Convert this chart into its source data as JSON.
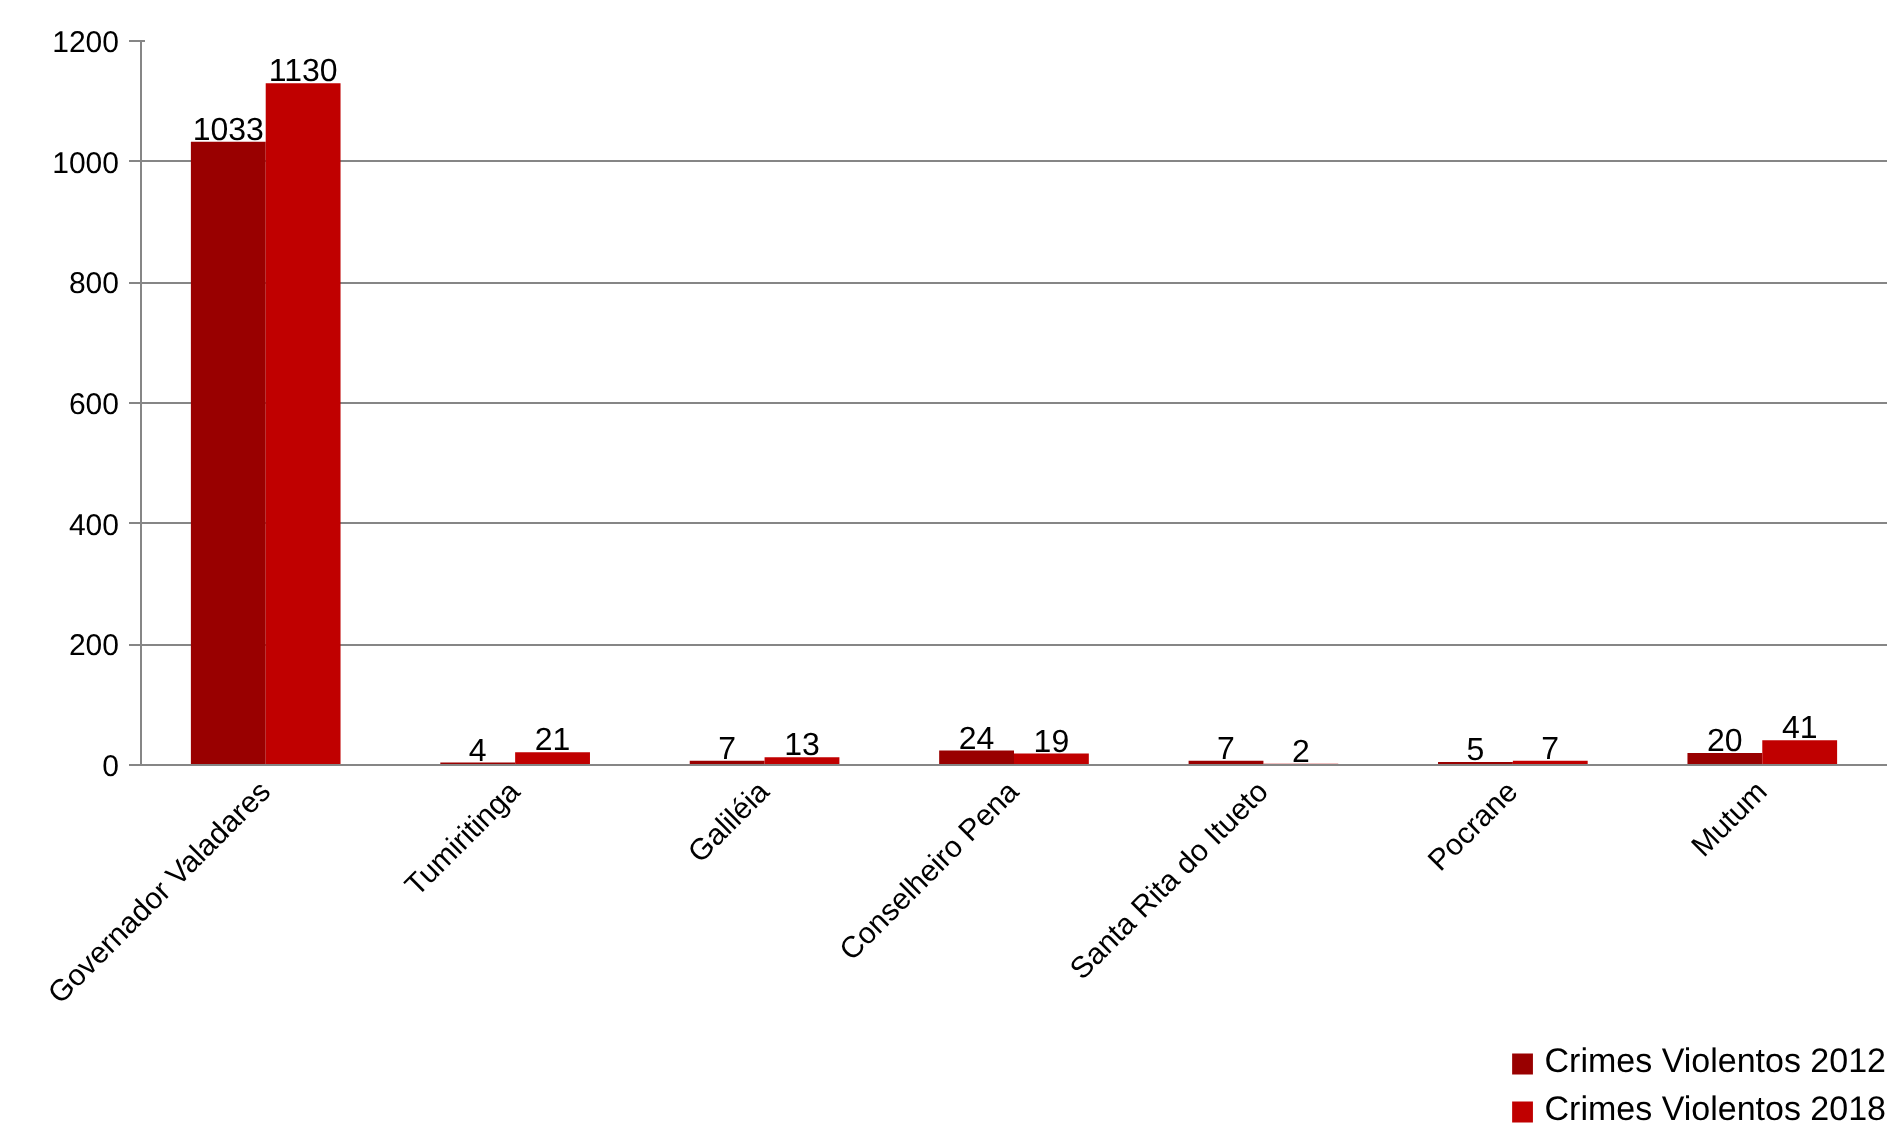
{
  "chart_data": {
    "type": "bar",
    "categories": [
      "Governador Valadares",
      "Tumiritinga",
      "Galiléia",
      "Conselheiro Pena",
      "Santa Rita do Itueto",
      "Pocrane",
      "Mutum"
    ],
    "series": [
      {
        "name": "Crimes Violentos 2012",
        "color": "#990000",
        "values": [
          1033,
          4,
          7,
          24,
          7,
          5,
          20
        ]
      },
      {
        "name": "Crimes Violentos 2018",
        "color": "#c00000",
        "values": [
          1130,
          21,
          13,
          19,
          2,
          7,
          41
        ]
      }
    ],
    "ylim": [
      0,
      1200
    ],
    "yticks": [
      0,
      200,
      400,
      600,
      800,
      1000,
      1200
    ],
    "grid": "y",
    "legend": "bottom right",
    "data_labels": true
  }
}
